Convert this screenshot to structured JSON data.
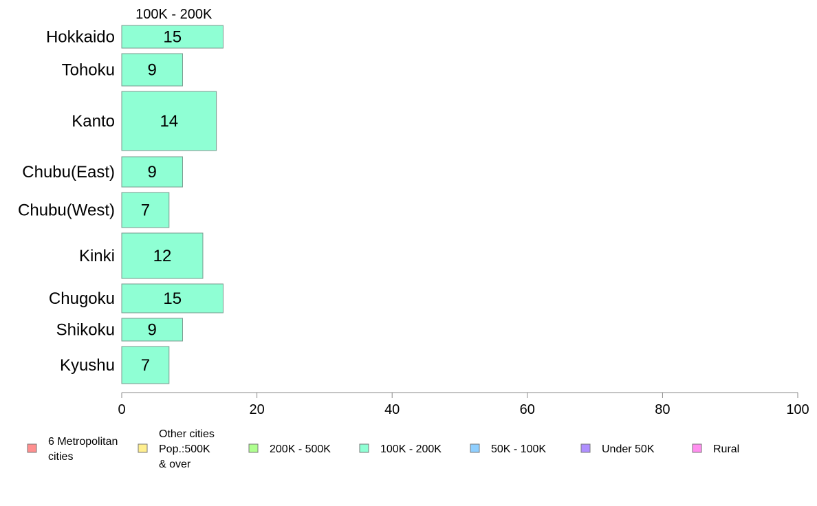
{
  "chart_data": {
    "type": "bar",
    "orientation": "horizontal",
    "stacked": true,
    "series_title": "100K - 200K",
    "categories": [
      "Hokkaido",
      "Tohoku",
      "Kanto",
      "Chubu(East)",
      "Chubu(West)",
      "Kinki",
      "Chugoku",
      "Shikoku",
      "Kyushu"
    ],
    "series": [
      {
        "name": "100K - 200K",
        "color": "#8fffd4",
        "values": [
          15,
          9,
          14,
          9,
          7,
          12,
          15,
          9,
          7
        ],
        "labels": [
          "15",
          "9",
          "14",
          "9",
          "7",
          "12",
          "15",
          "9",
          "7"
        ]
      }
    ],
    "xlim": [
      0,
      100
    ],
    "xticks": [
      0,
      20,
      40,
      60,
      80,
      100
    ],
    "xticklabels": [
      "0",
      "20",
      "40",
      "60",
      "80",
      "100"
    ],
    "grid": false,
    "legend_position": "bottom",
    "legend": [
      {
        "lines": [
          "6 Metropolitan",
          " cities"
        ],
        "color": "#ff8f8f"
      },
      {
        "lines": [
          "Other cities",
          "Pop.:500K",
          " & over"
        ],
        "color": "#ffef8f"
      },
      {
        "lines": [
          "200K - 500K"
        ],
        "color": "#afff8f"
      },
      {
        "lines": [
          "100K - 200K"
        ],
        "color": "#8fffd4"
      },
      {
        "lines": [
          "50K - 100K"
        ],
        "color": "#8fcfff"
      },
      {
        "lines": [
          "Under 50K"
        ],
        "color": "#af8fff"
      },
      {
        "lines": [
          "Rural"
        ],
        "color": "#ff8fef"
      }
    ]
  }
}
